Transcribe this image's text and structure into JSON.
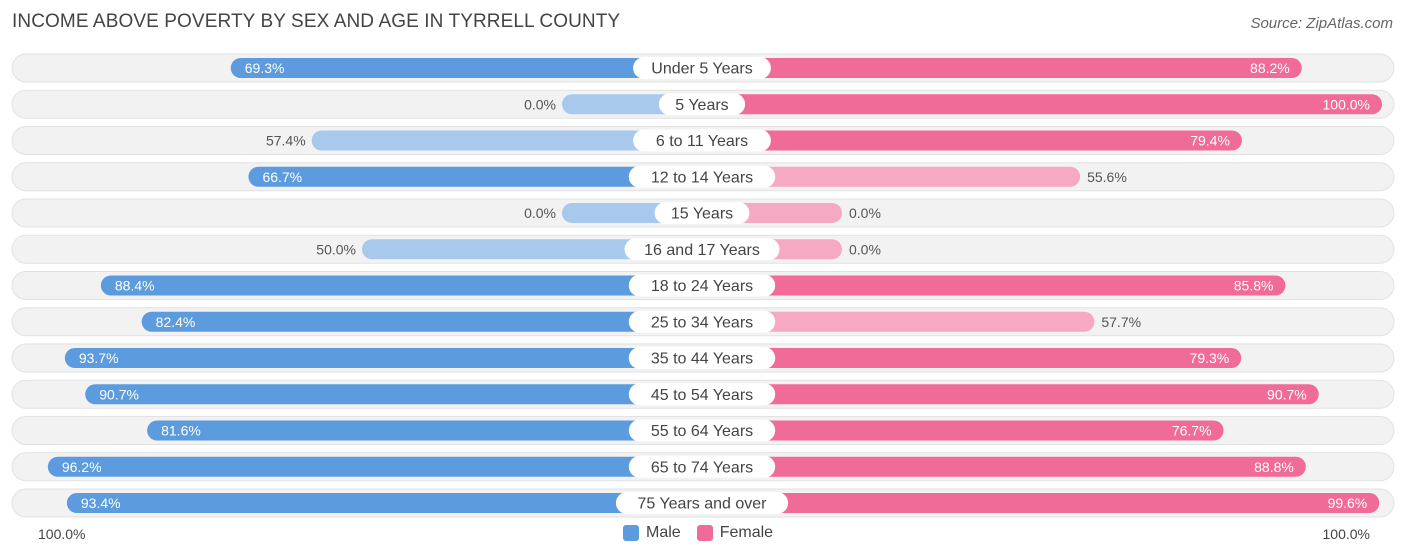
{
  "title": "INCOME ABOVE POVERTY BY SEX AND AGE IN TYRRELL COUNTY",
  "source": "Source: ZipAtlas.com",
  "axis_left_label": "100.0%",
  "axis_right_label": "100.0%",
  "legend": {
    "male": {
      "label": "Male",
      "color": "#5b9bde"
    },
    "female": {
      "label": "Female",
      "color": "#f06b97"
    }
  },
  "chart_data": {
    "type": "bar",
    "title": "INCOME ABOVE POVERTY BY SEX AND AGE IN TYRRELL COUNTY",
    "orientation": "horizontal-diverging",
    "categories": [
      "Under 5 Years",
      "5 Years",
      "6 to 11 Years",
      "12 to 14 Years",
      "15 Years",
      "16 and 17 Years",
      "18 to 24 Years",
      "25 to 34 Years",
      "35 to 44 Years",
      "45 to 54 Years",
      "55 to 64 Years",
      "65 to 74 Years",
      "75 Years and over"
    ],
    "series": [
      {
        "name": "Male",
        "values": [
          69.3,
          0.0,
          57.4,
          66.7,
          0.0,
          50.0,
          88.4,
          82.4,
          93.7,
          90.7,
          81.6,
          96.2,
          93.4
        ],
        "labels": [
          "69.3%",
          "0.0%",
          "57.4%",
          "66.7%",
          "0.0%",
          "50.0%",
          "88.4%",
          "82.4%",
          "93.7%",
          "90.7%",
          "81.6%",
          "96.2%",
          "93.4%"
        ]
      },
      {
        "name": "Female",
        "values": [
          88.2,
          100.0,
          79.4,
          55.6,
          0.0,
          0.0,
          85.8,
          57.7,
          79.3,
          90.7,
          76.7,
          88.8,
          99.6
        ],
        "labels": [
          "88.2%",
          "100.0%",
          "79.4%",
          "55.6%",
          "0.0%",
          "0.0%",
          "85.8%",
          "57.7%",
          "79.3%",
          "90.7%",
          "76.7%",
          "88.8%",
          "99.6%"
        ]
      }
    ],
    "xlim": [
      -100,
      100
    ],
    "xlabel_left": "100.0%",
    "xlabel_right": "100.0%",
    "legend_position": "bottom-center"
  }
}
